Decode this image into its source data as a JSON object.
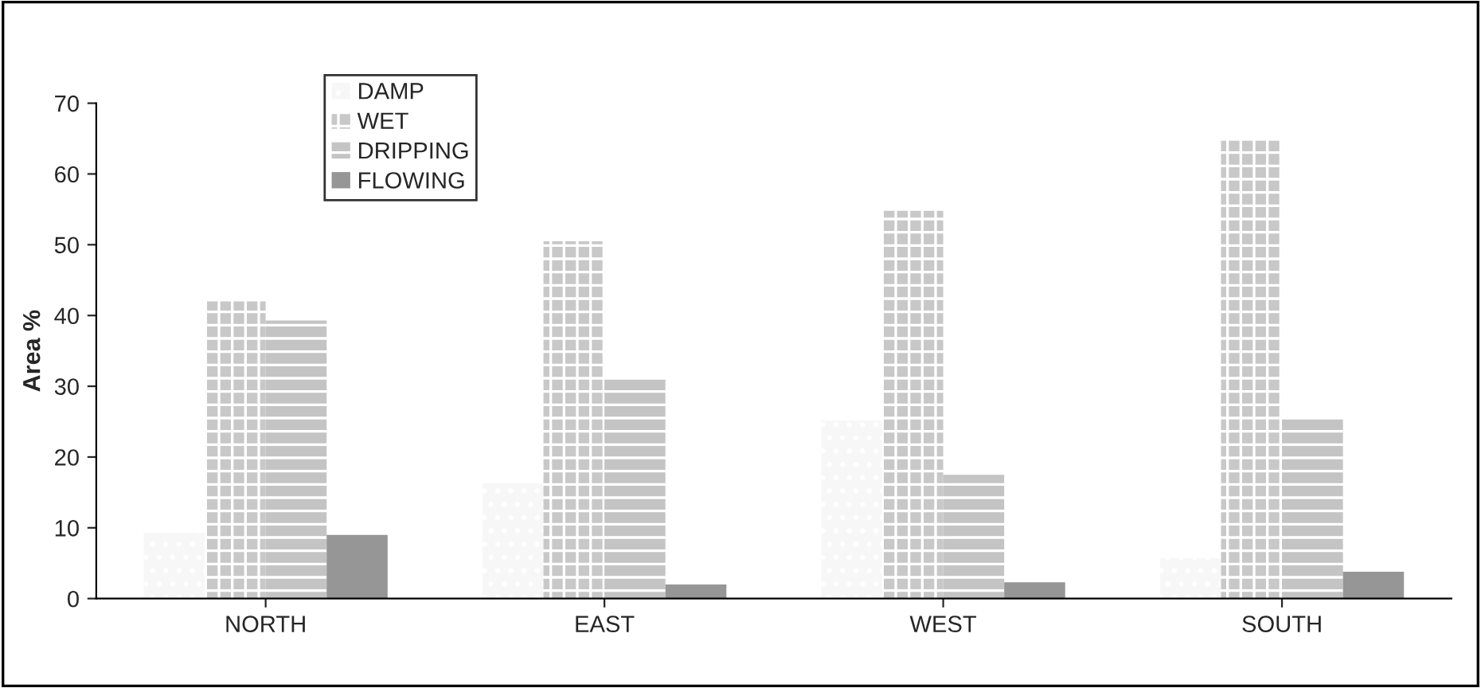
{
  "chart_data": {
    "type": "bar",
    "ylabel": "Area %",
    "categories": [
      "NORTH",
      "EAST",
      "WEST",
      "SOUTH"
    ],
    "series": [
      {
        "name": "DAMP",
        "color": "#f7f7f7",
        "values": [
          9.3,
          16.3,
          25.2,
          5.7
        ]
      },
      {
        "name": "WET",
        "color": "#c8c8c8",
        "values": [
          42,
          50.5,
          54.8,
          64.8
        ]
      },
      {
        "name": "DRIPPING",
        "color": "#c4c4c4",
        "values": [
          39.3,
          31,
          17.5,
          25.5
        ]
      },
      {
        "name": "FLOWING",
        "color": "#969696",
        "values": [
          9,
          2,
          2.3,
          3.8
        ]
      }
    ],
    "ylim": [
      0,
      70
    ],
    "yticks": [
      0,
      10,
      20,
      30,
      40,
      50,
      60,
      70
    ],
    "grid": false,
    "legend": "top left"
  }
}
